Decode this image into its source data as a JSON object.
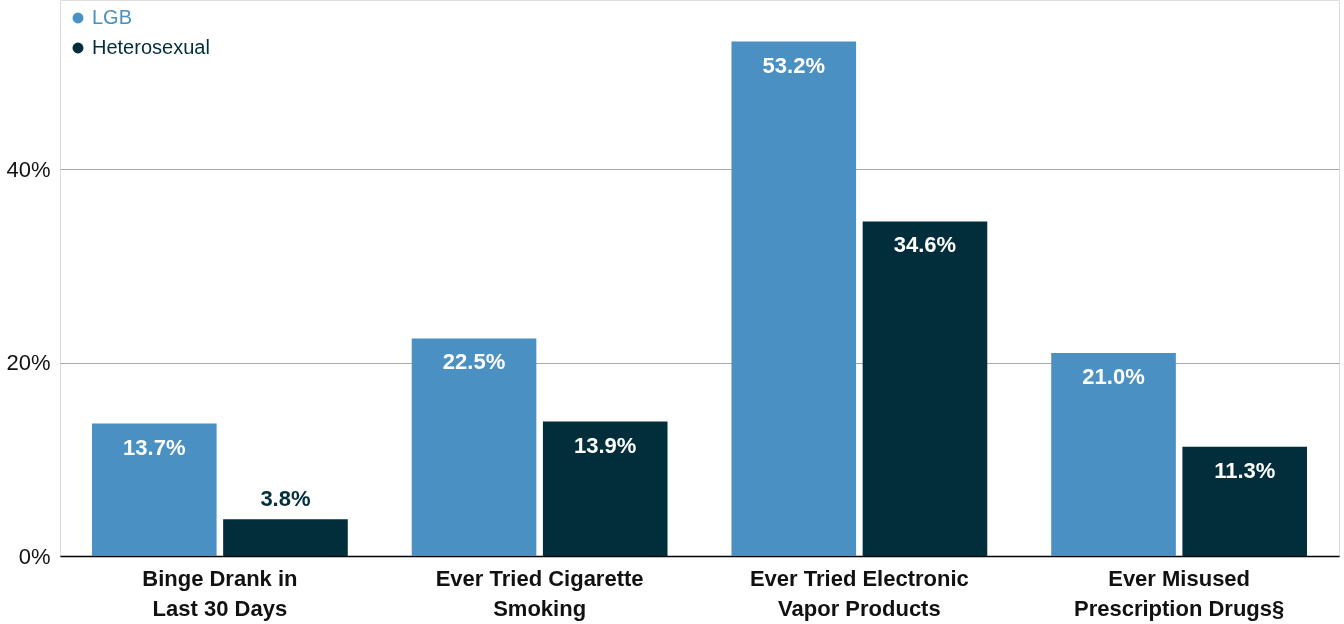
{
  "chart_data": {
    "type": "bar",
    "categories": [
      "Binge Drank in\nLast 30 Days",
      "Ever Tried Cigarette\nSmoking",
      "Ever Tried Electronic\nVapor Products",
      "Ever Misused\nPrescription Drugs§"
    ],
    "series": [
      {
        "name": "LGB",
        "color": "#4a90c2",
        "values": [
          13.7,
          22.5,
          53.2,
          21.0
        ],
        "value_labels": [
          "13.7%",
          "22.5%",
          "53.2%",
          "21.0%"
        ]
      },
      {
        "name": "Heterosexual",
        "color": "#022d3b",
        "values": [
          3.8,
          13.9,
          34.6,
          11.3
        ],
        "value_labels": [
          "3.8%",
          "13.9%",
          "34.6%",
          "11.3%"
        ]
      }
    ],
    "ylim": [
      0,
      57.5
    ],
    "yticks": [
      {
        "value": 0,
        "label": "0%"
      },
      {
        "value": 20,
        "label": "20%"
      },
      {
        "value": 40,
        "label": "40%"
      }
    ],
    "grid": "y",
    "legend": "top left"
  }
}
